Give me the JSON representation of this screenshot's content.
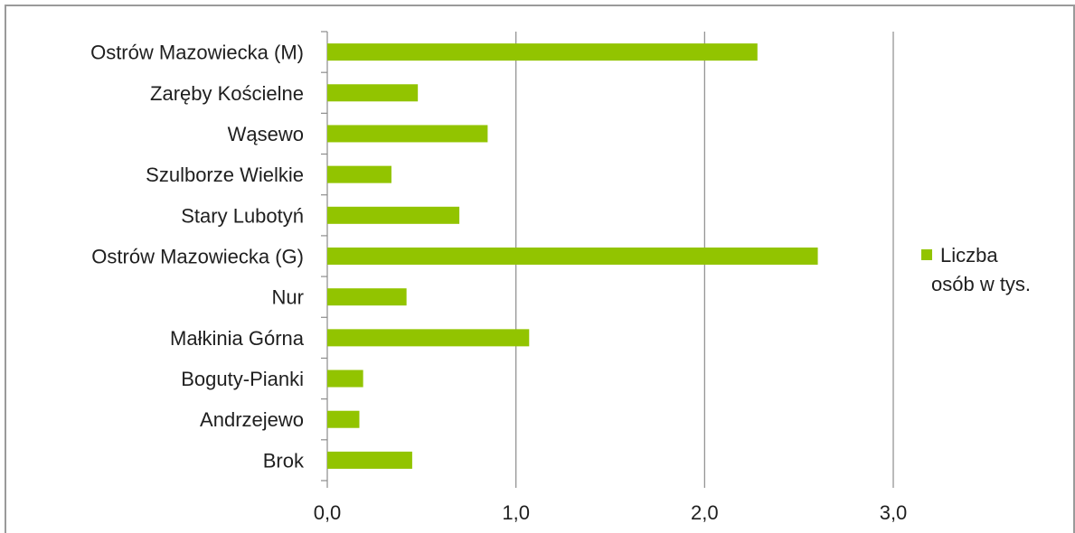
{
  "chart_data": {
    "type": "bar",
    "orientation": "horizontal",
    "categories": [
      "Ostrów Mazowiecka (M)",
      "Zaręby Kościelne",
      "Wąsewo",
      "Szulborze Wielkie",
      "Stary Lubotyń",
      "Ostrów Mazowiecka (G)",
      "Nur",
      "Małkinia Górna",
      "Boguty-Pianki",
      "Andrzejewo",
      "Brok"
    ],
    "series": [
      {
        "name": "Liczba osób w tys.",
        "color": "#92c400",
        "values": [
          2.28,
          0.48,
          0.85,
          0.34,
          0.7,
          2.6,
          0.42,
          1.07,
          0.19,
          0.17,
          0.45
        ]
      }
    ],
    "xlim": [
      0,
      3
    ],
    "xticks": [
      "0,0",
      "1,0",
      "2,0",
      "3,0"
    ],
    "grid": "vertical",
    "legend_position": "right",
    "legend_lines": [
      "Liczba",
      "osób w tys."
    ],
    "colors": {
      "gridline": "#8c8c8c",
      "axis": "#8c8c8c",
      "frame": "#9a9a9a"
    }
  }
}
